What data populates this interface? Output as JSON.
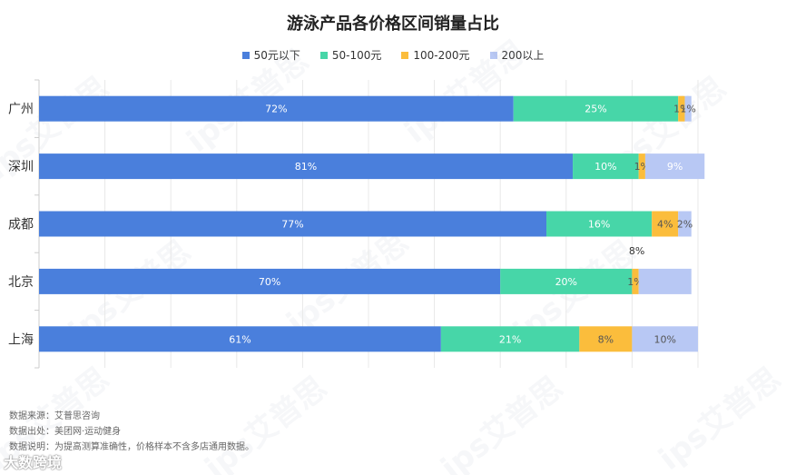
{
  "chart_data": {
    "type": "bar",
    "orientation": "horizontal",
    "stacked": true,
    "title": "游泳产品各价格区间销量占比",
    "categories": [
      "广州",
      "深圳",
      "成都",
      "北京",
      "上海"
    ],
    "series": [
      {
        "name": "50元以下",
        "color": "#4a7fdc",
        "values": [
          72,
          81,
          77,
          70,
          61
        ],
        "labels": [
          "72%",
          "81%",
          "77%",
          "70%",
          "61%"
        ]
      },
      {
        "name": "50-100元",
        "color": "#47d6a8",
        "values": [
          25,
          10,
          16,
          20,
          21
        ],
        "labels": [
          "25%",
          "10%",
          "16%",
          "20%",
          "21%"
        ]
      },
      {
        "name": "100-200元",
        "color": "#fbbd3c",
        "values": [
          1,
          1,
          4,
          1,
          8
        ],
        "labels": [
          "1%",
          "1%",
          "4%",
          "1%",
          "8%"
        ]
      },
      {
        "name": "200以上",
        "color": "#b8c8f4",
        "values": [
          1,
          9,
          2,
          8,
          10
        ],
        "labels": [
          "1%",
          "9%",
          "2%",
          "8%",
          "10%"
        ]
      }
    ],
    "xlim": [
      0,
      100
    ],
    "grid": true,
    "legend_position": "top"
  },
  "notes": {
    "source": "数据来源：艾普思咨询",
    "origin": "数据出处：美团网·运动健身",
    "explanation": "数据说明：为提高测算准确性，价格样本不含多店通用数据。"
  },
  "watermark": "ips艾普思",
  "brand": "大数跨境"
}
